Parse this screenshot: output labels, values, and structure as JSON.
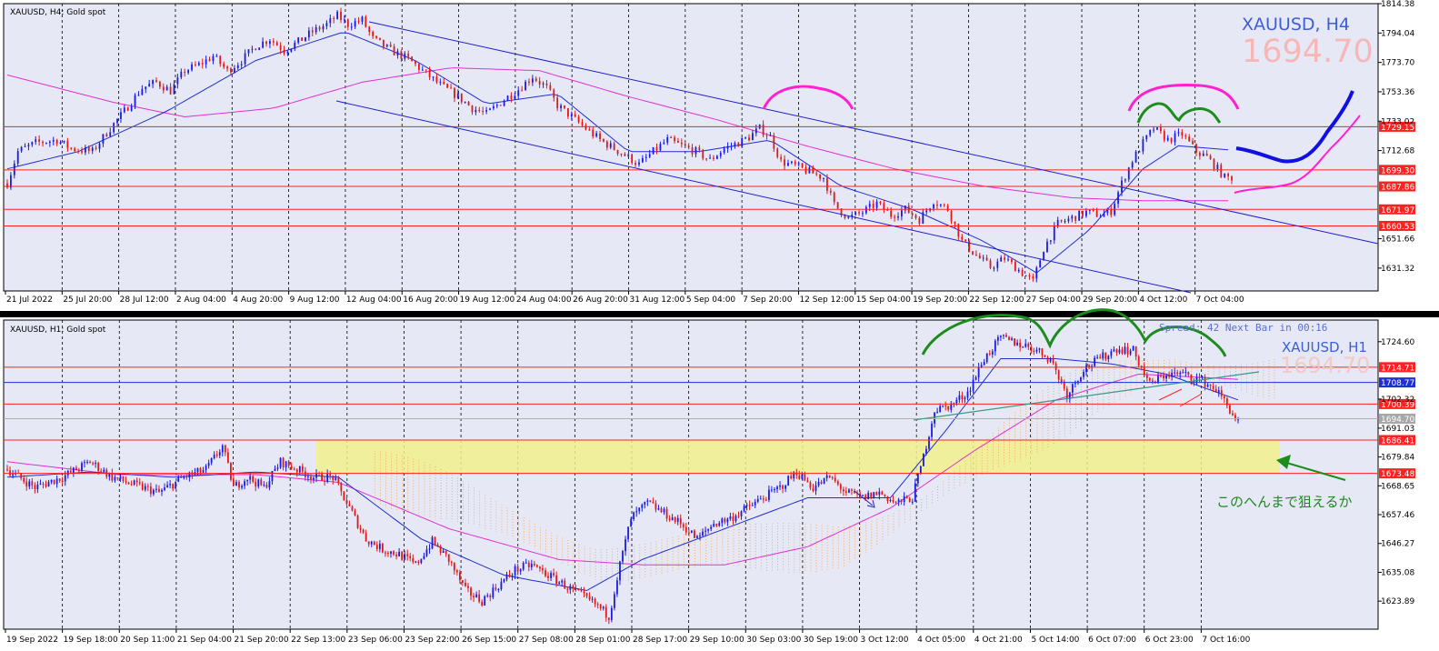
{
  "colors": {
    "bg": "#e6e8f6",
    "grid": "#000000",
    "bull": "#1a1ae6",
    "bear": "#e01818",
    "ma_fast": "#1f2fd0",
    "ma_slow": "#e030d0",
    "hline": "#ff2020",
    "hline_blue": "#1f2fd0",
    "hline_gray": "#b0b0b0",
    "channel": "#2020c8",
    "zone": "#f0f08c",
    "cloud": "#f5a050",
    "pink_mark": "#ff20d0",
    "green_mark": "#1c8c1c",
    "blue_proj": "#1010e0",
    "trend_green": "#3a9a80",
    "label_red_bg": "#ff2020",
    "label_blue_bg": "#1f2fd0",
    "label_gray_bg": "#a8a8a8"
  },
  "chart_data": [
    {
      "type": "line",
      "panel": "H4",
      "header": "XAUUSD, H4:  Gold spot",
      "symbol_label": "XAUUSD, H4",
      "price_label": "1694.70",
      "ylim": [
        1615.5,
        1814.38
      ],
      "y_ticks": [
        1814.38,
        1794.04,
        1773.7,
        1753.36,
        1733.02,
        1712.68,
        1651.66,
        1631.32
      ],
      "x_ticks": [
        "21 Jul 2022",
        "25 Jul 20:00",
        "28 Jul 12:00",
        "2 Aug 04:00",
        "4 Aug 20:00",
        "9 Aug 12:00",
        "12 Aug 04:00",
        "16 Aug 20:00",
        "19 Aug 12:00",
        "24 Aug 04:00",
        "26 Aug 20:00",
        "31 Aug 12:00",
        "5 Sep 04:00",
        "7 Sep 20:00",
        "12 Sep 12:00",
        "15 Sep 04:00",
        "19 Sep 20:00",
        "22 Sep 12:00",
        "27 Sep 04:00",
        "29 Sep 20:00",
        "4 Oct 12:00",
        "7 Oct 04:00"
      ],
      "levels": [
        {
          "value": 1729.15,
          "label": "1729.15",
          "kind": "red"
        },
        {
          "value": 1699.3,
          "label": "1699.30",
          "kind": "red"
        },
        {
          "value": 1687.86,
          "label": "1687.86",
          "kind": "red"
        },
        {
          "value": 1671.97,
          "label": "1671.97",
          "kind": "red"
        },
        {
          "value": 1660.53,
          "label": "1660.53",
          "kind": "red"
        }
      ],
      "close_path": [
        [
          0,
          1690
        ],
        [
          3,
          1712
        ],
        [
          8,
          1718
        ],
        [
          14,
          1720
        ],
        [
          18,
          1714
        ],
        [
          24,
          1712
        ],
        [
          28,
          1725
        ],
        [
          33,
          1740
        ],
        [
          38,
          1756
        ],
        [
          42,
          1760
        ],
        [
          46,
          1754
        ],
        [
          50,
          1768
        ],
        [
          54,
          1772
        ],
        [
          58,
          1778
        ],
        [
          62,
          1768
        ],
        [
          66,
          1775
        ],
        [
          70,
          1785
        ],
        [
          74,
          1790
        ],
        [
          78,
          1782
        ],
        [
          82,
          1788
        ],
        [
          86,
          1795
        ],
        [
          90,
          1800
        ],
        [
          93,
          1806
        ],
        [
          96,
          1800
        ],
        [
          100,
          1803
        ],
        [
          103,
          1790
        ],
        [
          108,
          1782
        ],
        [
          113,
          1776
        ],
        [
          118,
          1766
        ],
        [
          122,
          1758
        ],
        [
          127,
          1750
        ],
        [
          131,
          1742
        ],
        [
          135,
          1738
        ],
        [
          140,
          1748
        ],
        [
          144,
          1755
        ],
        [
          148,
          1764
        ],
        [
          152,
          1756
        ],
        [
          155,
          1744
        ],
        [
          159,
          1736
        ],
        [
          163,
          1728
        ],
        [
          167,
          1720
        ],
        [
          171,
          1714
        ],
        [
          175,
          1708
        ],
        [
          178,
          1703
        ],
        [
          182,
          1712
        ],
        [
          186,
          1720
        ],
        [
          190,
          1716
        ],
        [
          194,
          1712
        ],
        [
          198,
          1706
        ],
        [
          202,
          1714
        ],
        [
          206,
          1718
        ],
        [
          209,
          1722
        ],
        [
          212,
          1728
        ],
        [
          215,
          1722
        ],
        [
          218,
          1705
        ],
        [
          222,
          1702
        ],
        [
          226,
          1698
        ],
        [
          230,
          1694
        ],
        [
          233,
          1675
        ],
        [
          237,
          1666
        ],
        [
          241,
          1670
        ],
        [
          245,
          1676
        ],
        [
          249,
          1668
        ],
        [
          253,
          1672
        ],
        [
          257,
          1665
        ],
        [
          261,
          1678
        ],
        [
          265,
          1672
        ],
        [
          269,
          1650
        ],
        [
          273,
          1640
        ],
        [
          277,
          1632
        ],
        [
          281,
          1638
        ],
        [
          285,
          1630
        ],
        [
          289,
          1622
        ],
        [
          292,
          1645
        ],
        [
          296,
          1662
        ],
        [
          300,
          1666
        ],
        [
          304,
          1670
        ],
        [
          308,
          1668
        ],
        [
          311,
          1671
        ],
        [
          314,
          1690
        ],
        [
          317,
          1706
        ],
        [
          320,
          1718
        ],
        [
          323,
          1728
        ],
        [
          327,
          1720
        ],
        [
          331,
          1724
        ],
        [
          335,
          1712
        ],
        [
          338,
          1708
        ],
        [
          341,
          1700
        ],
        [
          343,
          1694
        ]
      ],
      "ma_fast": [
        [
          0,
          1700
        ],
        [
          20,
          1712
        ],
        [
          45,
          1740
        ],
        [
          70,
          1775
        ],
        [
          95,
          1795
        ],
        [
          115,
          1775
        ],
        [
          135,
          1745
        ],
        [
          155,
          1752
        ],
        [
          175,
          1712
        ],
        [
          195,
          1712
        ],
        [
          215,
          1720
        ],
        [
          235,
          1688
        ],
        [
          255,
          1672
        ],
        [
          275,
          1650
        ],
        [
          290,
          1628
        ],
        [
          305,
          1658
        ],
        [
          320,
          1700
        ],
        [
          330,
          1716
        ],
        [
          345,
          1713
        ]
      ],
      "ma_slow": [
        [
          0,
          1765
        ],
        [
          30,
          1746
        ],
        [
          50,
          1736
        ],
        [
          75,
          1742
        ],
        [
          100,
          1760
        ],
        [
          125,
          1770
        ],
        [
          150,
          1768
        ],
        [
          175,
          1750
        ],
        [
          200,
          1734
        ],
        [
          225,
          1716
        ],
        [
          250,
          1700
        ],
        [
          275,
          1688
        ],
        [
          300,
          1680
        ],
        [
          320,
          1678
        ],
        [
          345,
          1678
        ]
      ],
      "n_bars": 346
    },
    {
      "type": "line",
      "panel": "H1",
      "header": "XAUUSD, H1:  Gold spot",
      "symbol_label": "XAUUSD, H1",
      "price_label": "1694.70",
      "spread_text": "Spread: 42  Next Bar in 00:16",
      "annotation": "このへんまで狙えるか",
      "ylim": [
        1613.0,
        1733.0
      ],
      "y_ticks": [
        1724.6,
        1702.32,
        1691.03,
        1679.84,
        1668.65,
        1657.46,
        1646.27,
        1635.08,
        1623.89
      ],
      "x_ticks": [
        "19 Sep 2022",
        "19 Sep 18:00",
        "20 Sep 11:00",
        "21 Sep 04:00",
        "21 Sep 20:00",
        "22 Sep 13:00",
        "23 Sep 06:00",
        "23 Sep 22:00",
        "26 Sep 15:00",
        "27 Sep 08:00",
        "28 Sep 01:00",
        "28 Sep 17:00",
        "29 Sep 10:00",
        "30 Sep 03:00",
        "30 Sep 19:00",
        "3 Oct 12:00",
        "4 Oct 05:00",
        "4 Oct 21:00",
        "5 Oct 14:00",
        "6 Oct 07:00",
        "6 Oct 23:00",
        "7 Oct 16:00"
      ],
      "levels": [
        {
          "value": 1714.71,
          "label": "1714.71",
          "kind": "red"
        },
        {
          "value": 1708.77,
          "label": "1708.77",
          "kind": "blue"
        },
        {
          "value": 1700.39,
          "label": "1700.39",
          "kind": "red"
        },
        {
          "value": 1694.7,
          "label": "1694.70",
          "kind": "gray"
        },
        {
          "value": 1686.41,
          "label": "1686.41",
          "kind": "red"
        },
        {
          "value": 1673.48,
          "label": "1673.48",
          "kind": "red"
        }
      ],
      "close_path": [
        [
          0,
          1675
        ],
        [
          10,
          1668
        ],
        [
          20,
          1672
        ],
        [
          30,
          1678
        ],
        [
          38,
          1672
        ],
        [
          46,
          1669
        ],
        [
          55,
          1666
        ],
        [
          64,
          1672
        ],
        [
          72,
          1675
        ],
        [
          78,
          1684
        ],
        [
          82,
          1668
        ],
        [
          87,
          1672
        ],
        [
          93,
          1668
        ],
        [
          99,
          1678
        ],
        [
          105,
          1675
        ],
        [
          111,
          1672
        ],
        [
          118,
          1672
        ],
        [
          124,
          1660
        ],
        [
          130,
          1648
        ],
        [
          136,
          1644
        ],
        [
          142,
          1642
        ],
        [
          148,
          1638
        ],
        [
          154,
          1647
        ],
        [
          160,
          1640
        ],
        [
          166,
          1628
        ],
        [
          172,
          1624
        ],
        [
          178,
          1630
        ],
        [
          184,
          1636
        ],
        [
          190,
          1638
        ],
        [
          196,
          1634
        ],
        [
          202,
          1630
        ],
        [
          208,
          1626
        ],
        [
          214,
          1622
        ],
        [
          218,
          1618
        ],
        [
          222,
          1638
        ],
        [
          226,
          1656
        ],
        [
          232,
          1662
        ],
        [
          238,
          1658
        ],
        [
          244,
          1654
        ],
        [
          250,
          1648
        ],
        [
          256,
          1654
        ],
        [
          262,
          1656
        ],
        [
          268,
          1660
        ],
        [
          274,
          1664
        ],
        [
          280,
          1668
        ],
        [
          286,
          1674
        ],
        [
          292,
          1668
        ],
        [
          298,
          1672
        ],
        [
          304,
          1666
        ],
        [
          310,
          1664
        ],
        [
          316,
          1666
        ],
        [
          322,
          1662
        ],
        [
          328,
          1664
        ],
        [
          332,
          1680
        ],
        [
          336,
          1698
        ],
        [
          342,
          1700
        ],
        [
          348,
          1705
        ],
        [
          354,
          1718
        ],
        [
          360,
          1726
        ],
        [
          366,
          1724
        ],
        [
          372,
          1722
        ],
        [
          378,
          1718
        ],
        [
          384,
          1704
        ],
        [
          390,
          1714
        ],
        [
          396,
          1718
        ],
        [
          402,
          1722
        ],
        [
          408,
          1721
        ],
        [
          414,
          1708
        ],
        [
          420,
          1712
        ],
        [
          426,
          1712
        ],
        [
          432,
          1710
        ],
        [
          438,
          1706
        ],
        [
          442,
          1700
        ],
        [
          446,
          1693
        ]
      ],
      "ma_fast": [
        [
          0,
          1672
        ],
        [
          30,
          1674
        ],
        [
          60,
          1672
        ],
        [
          90,
          1674
        ],
        [
          120,
          1672
        ],
        [
          150,
          1648
        ],
        [
          180,
          1634
        ],
        [
          210,
          1628
        ],
        [
          230,
          1640
        ],
        [
          260,
          1652
        ],
        [
          290,
          1664
        ],
        [
          320,
          1664
        ],
        [
          340,
          1690
        ],
        [
          360,
          1718
        ],
        [
          380,
          1718
        ],
        [
          400,
          1716
        ],
        [
          420,
          1712
        ],
        [
          446,
          1702
        ]
      ],
      "ma_slow": [
        [
          0,
          1678
        ],
        [
          40,
          1673
        ],
        [
          90,
          1673
        ],
        [
          120,
          1670
        ],
        [
          160,
          1652
        ],
        [
          200,
          1640
        ],
        [
          230,
          1638
        ],
        [
          260,
          1638
        ],
        [
          290,
          1645
        ],
        [
          320,
          1660
        ],
        [
          350,
          1682
        ],
        [
          380,
          1702
        ],
        [
          410,
          1712
        ],
        [
          446,
          1710
        ]
      ],
      "n_bars": 447
    }
  ]
}
